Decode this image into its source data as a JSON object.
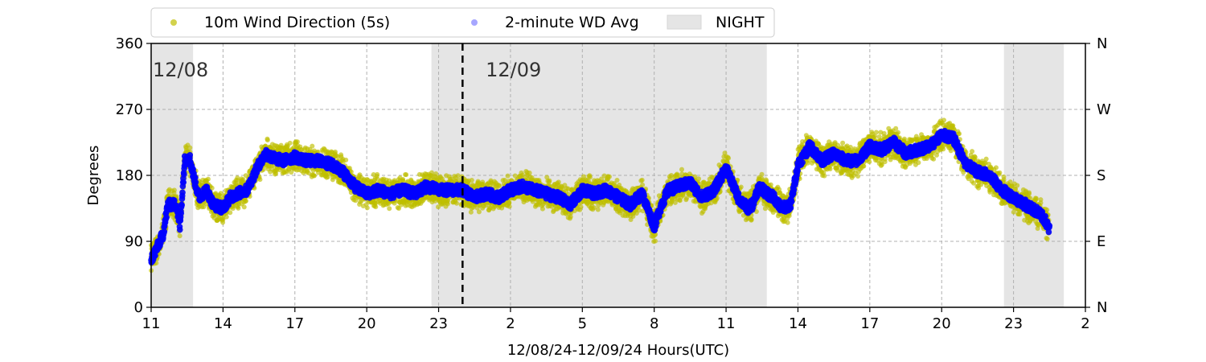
{
  "chart_data": {
    "type": "scatter",
    "xlabel": "12/08/24-12/09/24  Hours(UTC)",
    "ylabel": "Degrees",
    "x_range_hours": [
      11,
      50
    ],
    "x_ticks": [
      {
        "hour": 11,
        "label": "11"
      },
      {
        "hour": 14,
        "label": "14"
      },
      {
        "hour": 17,
        "label": "17"
      },
      {
        "hour": 20,
        "label": "20"
      },
      {
        "hour": 23,
        "label": "23"
      },
      {
        "hour": 26,
        "label": "2"
      },
      {
        "hour": 29,
        "label": "5"
      },
      {
        "hour": 32,
        "label": "8"
      },
      {
        "hour": 35,
        "label": "11"
      },
      {
        "hour": 38,
        "label": "14"
      },
      {
        "hour": 41,
        "label": "17"
      },
      {
        "hour": 44,
        "label": "20"
      },
      {
        "hour": 47,
        "label": "23"
      },
      {
        "hour": 50,
        "label": "2"
      }
    ],
    "ylim": [
      0,
      360
    ],
    "y_ticks": [
      0,
      90,
      180,
      270,
      360
    ],
    "y_right_ticks": [
      {
        "value": 0,
        "label": "N"
      },
      {
        "value": 90,
        "label": "E"
      },
      {
        "value": 180,
        "label": "S"
      },
      {
        "value": 270,
        "label": "W"
      },
      {
        "value": 360,
        "label": "N"
      }
    ],
    "grid": true,
    "legend_position": "top",
    "legend": [
      {
        "label": "10m Wind Direction (5s)",
        "kind": "point",
        "color": "#bfbf00"
      },
      {
        "label": "2-minute WD Avg",
        "kind": "point",
        "color": "#0000ff"
      },
      {
        "label": "NIGHT",
        "kind": "patch",
        "color": "#e5e5e5"
      }
    ],
    "night_periods_hours": [
      [
        11,
        12.75
      ],
      [
        22.7,
        36.7
      ],
      [
        46.6,
        49.1
      ]
    ],
    "midnight_hour": 24,
    "day_labels": [
      {
        "hour": 11,
        "label": "12/08"
      },
      {
        "hour": 24.9,
        "label": "12/09"
      }
    ],
    "series": [
      {
        "name": "10m Wind Direction (5s)",
        "color": "#bfbf00",
        "scatter_spread_deg": 22,
        "hours": [
          11.0,
          11.3,
          11.5,
          11.7,
          11.9,
          12.05,
          12.2,
          12.4,
          12.6,
          12.8,
          13.0,
          13.3,
          13.6,
          14.0,
          14.3,
          14.6,
          15.0,
          15.5,
          15.8,
          16.0,
          16.5,
          17.0,
          17.5,
          18.0,
          18.5,
          19.0,
          19.5,
          20.0,
          20.5,
          21.0,
          21.5,
          22.0,
          22.5,
          23.0,
          23.5,
          24.0,
          24.5,
          25.0,
          25.5,
          26.0,
          26.5,
          27.0,
          27.5,
          28.0,
          28.5,
          29.0,
          29.5,
          30.0,
          30.5,
          31.0,
          31.5,
          32.0,
          32.3,
          32.6,
          33.0,
          33.5,
          34.0,
          34.5,
          35.0,
          35.5,
          35.9,
          36.1,
          36.4,
          36.7,
          37.0,
          37.3,
          37.7,
          38.0,
          38.5,
          39.0,
          39.5,
          40.0,
          40.5,
          41.0,
          41.5,
          42.0,
          42.5,
          43.0,
          43.5,
          44.0,
          44.5,
          45.0,
          45.5,
          46.0,
          46.5,
          47.0,
          47.5,
          48.0,
          48.3,
          48.5
        ],
        "values": [
          65,
          85,
          100,
          140,
          140,
          140,
          110,
          200,
          205,
          175,
          150,
          160,
          140,
          135,
          150,
          155,
          160,
          195,
          210,
          205,
          200,
          205,
          200,
          200,
          195,
          185,
          165,
          155,
          160,
          155,
          160,
          155,
          165,
          160,
          160,
          160,
          150,
          155,
          150,
          160,
          165,
          160,
          155,
          150,
          140,
          160,
          155,
          160,
          150,
          140,
          155,
          110,
          140,
          160,
          165,
          170,
          150,
          160,
          190,
          150,
          135,
          140,
          165,
          155,
          150,
          135,
          140,
          195,
          220,
          200,
          210,
          200,
          200,
          220,
          215,
          225,
          210,
          215,
          220,
          235,
          230,
          195,
          185,
          180,
          160,
          150,
          140,
          130,
          120,
          105
        ]
      },
      {
        "name": "2-minute WD Avg",
        "color": "#0000ff",
        "hours": [
          11.0,
          11.3,
          11.5,
          11.7,
          11.9,
          12.05,
          12.2,
          12.4,
          12.6,
          12.8,
          13.0,
          13.3,
          13.6,
          14.0,
          14.3,
          14.6,
          15.0,
          15.5,
          15.8,
          16.0,
          16.5,
          17.0,
          17.5,
          18.0,
          18.5,
          19.0,
          19.5,
          20.0,
          20.5,
          21.0,
          21.5,
          22.0,
          22.5,
          23.0,
          23.5,
          24.0,
          24.5,
          25.0,
          25.5,
          26.0,
          26.5,
          27.0,
          27.5,
          28.0,
          28.5,
          29.0,
          29.5,
          30.0,
          30.5,
          31.0,
          31.5,
          32.0,
          32.3,
          32.6,
          33.0,
          33.5,
          34.0,
          34.5,
          35.0,
          35.5,
          35.9,
          36.1,
          36.4,
          36.7,
          37.0,
          37.3,
          37.7,
          38.0,
          38.5,
          39.0,
          39.5,
          40.0,
          40.5,
          41.0,
          41.5,
          42.0,
          42.5,
          43.0,
          43.5,
          44.0,
          44.5,
          45.0,
          45.5,
          46.0,
          46.5,
          47.0,
          47.5,
          48.0,
          48.3,
          48.5
        ],
        "values": [
          65,
          85,
          100,
          140,
          140,
          140,
          110,
          200,
          205,
          175,
          150,
          160,
          140,
          135,
          150,
          155,
          160,
          195,
          210,
          205,
          200,
          205,
          200,
          200,
          195,
          185,
          165,
          155,
          160,
          155,
          160,
          155,
          165,
          160,
          160,
          160,
          150,
          155,
          150,
          160,
          165,
          160,
          155,
          150,
          140,
          160,
          155,
          160,
          150,
          140,
          155,
          110,
          140,
          160,
          165,
          170,
          150,
          160,
          190,
          150,
          135,
          140,
          165,
          155,
          150,
          135,
          140,
          195,
          220,
          200,
          210,
          200,
          200,
          220,
          215,
          225,
          210,
          215,
          220,
          235,
          230,
          195,
          185,
          180,
          160,
          150,
          140,
          130,
          120,
          105
        ]
      }
    ]
  }
}
